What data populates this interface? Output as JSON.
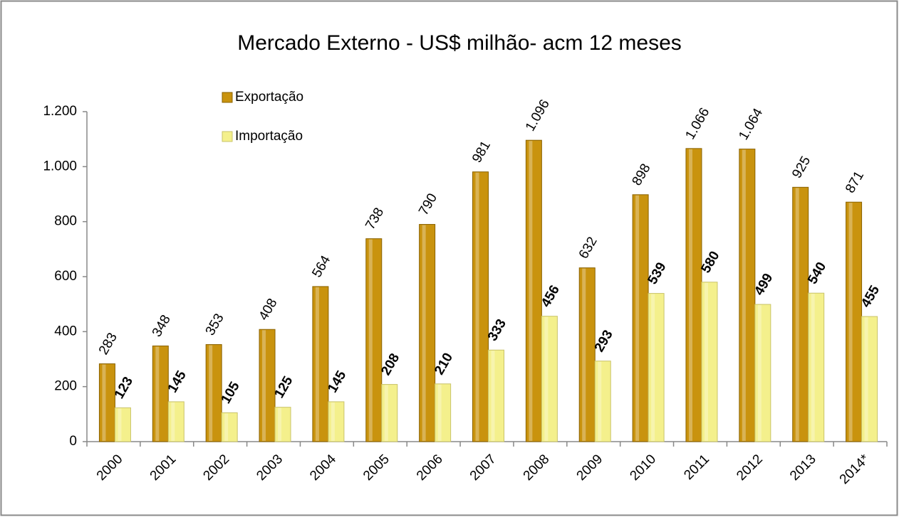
{
  "chart_data": {
    "type": "bar",
    "title": "Mercado Externo - US$ milhão- acm 12 meses",
    "categories": [
      "2000",
      "2001",
      "2002",
      "2003",
      "2004",
      "2005",
      "2006",
      "2007",
      "2008",
      "2009",
      "2010",
      "2011",
      "2012",
      "2013",
      "2014*"
    ],
    "series": [
      {
        "name": "Exportação",
        "color": "#c9930e",
        "values": [
          283,
          348,
          353,
          408,
          564,
          738,
          790,
          981,
          1096,
          632,
          898,
          1066,
          1064,
          925,
          871
        ],
        "value_labels": [
          "283",
          "348",
          "353",
          "408",
          "564",
          "738",
          "790",
          "981",
          "1.096",
          "632",
          "898",
          "1.066",
          "1.064",
          "925",
          "871"
        ]
      },
      {
        "name": "Importação",
        "color": "#f4f08c",
        "values": [
          123,
          145,
          105,
          125,
          145,
          208,
          210,
          333,
          456,
          293,
          539,
          580,
          499,
          540,
          455
        ]
      }
    ],
    "ylim": [
      0,
      1200
    ],
    "yticks": [
      0,
      200,
      400,
      600,
      800,
      {
        "value": 1000,
        "label": "1.000"
      },
      {
        "value": 1200,
        "label": "1.200"
      }
    ],
    "grid": false,
    "legend": "top-left"
  }
}
